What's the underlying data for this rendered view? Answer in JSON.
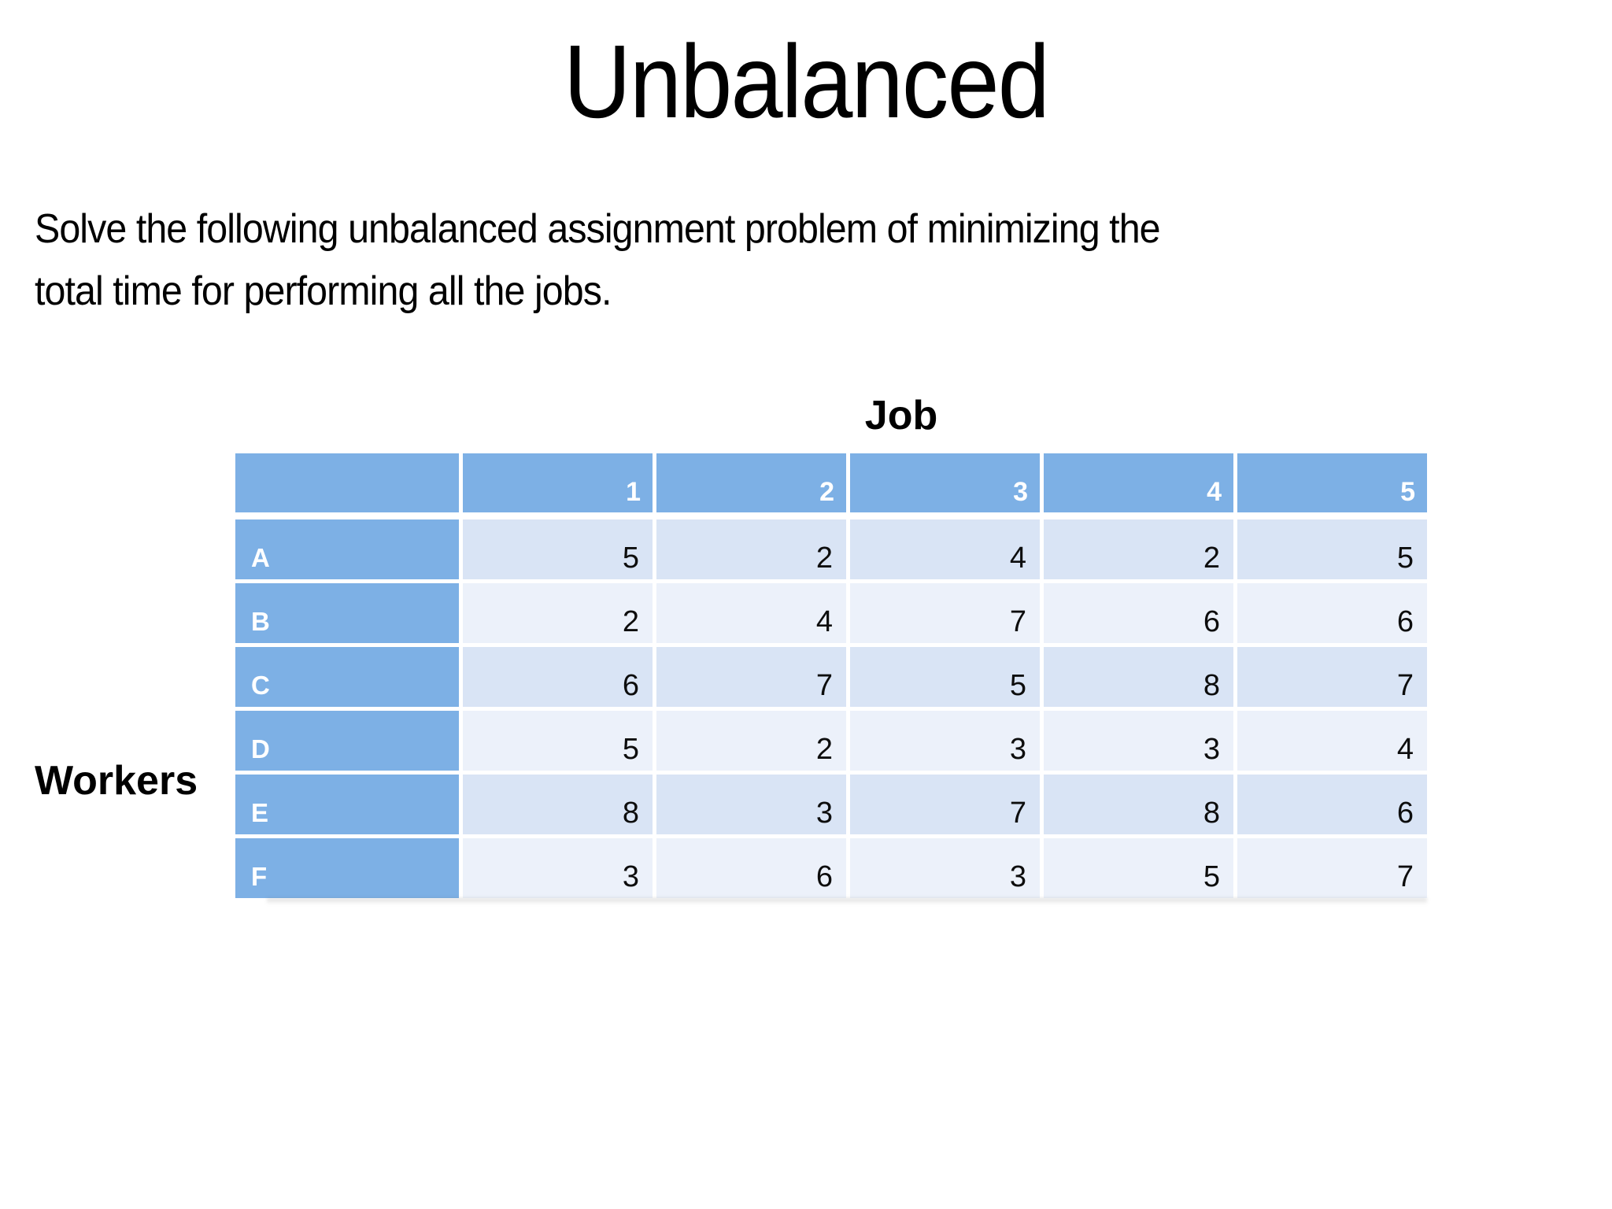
{
  "title": "Unbalanced",
  "paragraph": {
    "lines": [
      "Solve the following unbalanced assignment problem of minimizing the",
      "total time for performing all the jobs."
    ]
  },
  "table": {
    "top_label": "Job",
    "left_label": "Workers",
    "column_headers": [
      "1",
      "2",
      "3",
      "4",
      "5"
    ],
    "rows": [
      {
        "label": "A",
        "values": [
          5,
          2,
          4,
          2,
          5
        ]
      },
      {
        "label": "B",
        "values": [
          2,
          4,
          7,
          6,
          6
        ]
      },
      {
        "label": "C",
        "values": [
          6,
          7,
          5,
          8,
          7
        ]
      },
      {
        "label": "D",
        "values": [
          5,
          2,
          3,
          3,
          4
        ]
      },
      {
        "label": "E",
        "values": [
          8,
          3,
          7,
          8,
          6
        ]
      },
      {
        "label": "F",
        "values": [
          3,
          6,
          3,
          5,
          7
        ]
      }
    ]
  },
  "colors": {
    "header_blue": "#7DB0E5",
    "band_dark": "#D9E4F5",
    "band_light": "#ECF1FA",
    "header_text": "#FFFFFF"
  }
}
